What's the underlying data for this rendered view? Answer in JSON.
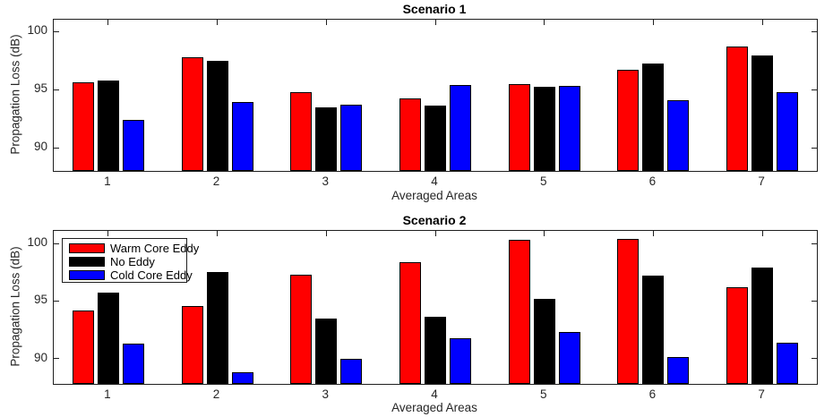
{
  "figure": {
    "background": "#ffffff",
    "axis_color": "#1f1f1f",
    "text_color": "#262626",
    "title_color": "#000000"
  },
  "chart_data": [
    {
      "type": "bar",
      "title": "Scenario 1",
      "xlabel": "Averaged Areas",
      "ylabel": "Propagation Loss (dB)",
      "categories": [
        "1",
        "2",
        "3",
        "4",
        "5",
        "6",
        "7"
      ],
      "yticks": [
        90,
        95,
        100
      ],
      "ylim": [
        88,
        101
      ],
      "grid": false,
      "legend": null,
      "series": [
        {
          "name": "Warm Core Eddy",
          "color": "#ff0000",
          "values": [
            95.6,
            97.8,
            94.8,
            94.2,
            95.5,
            96.7,
            98.7
          ]
        },
        {
          "name": "No Eddy",
          "color": "#000000",
          "values": [
            95.8,
            97.5,
            93.5,
            93.6,
            95.2,
            97.2,
            97.9
          ]
        },
        {
          "name": "Cold Core Eddy",
          "color": "#0000ff",
          "values": [
            92.4,
            93.9,
            93.7,
            95.4,
            95.3,
            94.1,
            94.8
          ]
        }
      ]
    },
    {
      "type": "bar",
      "title": "Scenario 2",
      "xlabel": "Averaged Areas",
      "ylabel": "Propagation Loss (dB)",
      "categories": [
        "1",
        "2",
        "3",
        "4",
        "5",
        "6",
        "7"
      ],
      "yticks": [
        90,
        95,
        100
      ],
      "ylim": [
        87.8,
        101.1
      ],
      "grid": false,
      "legend": {
        "position": "top-left",
        "items": [
          "Warm Core Eddy",
          "No Eddy",
          "Cold Core Eddy"
        ]
      },
      "series": [
        {
          "name": "Warm Core Eddy",
          "color": "#ff0000",
          "values": [
            94.2,
            94.6,
            97.3,
            98.4,
            100.3,
            100.4,
            96.2
          ]
        },
        {
          "name": "No Eddy",
          "color": "#000000",
          "values": [
            95.7,
            97.5,
            93.5,
            93.6,
            95.2,
            97.2,
            97.9
          ]
        },
        {
          "name": "Cold Core Eddy",
          "color": "#0000ff",
          "values": [
            91.3,
            88.8,
            90.0,
            91.8,
            92.3,
            90.1,
            91.4
          ]
        }
      ]
    }
  ]
}
